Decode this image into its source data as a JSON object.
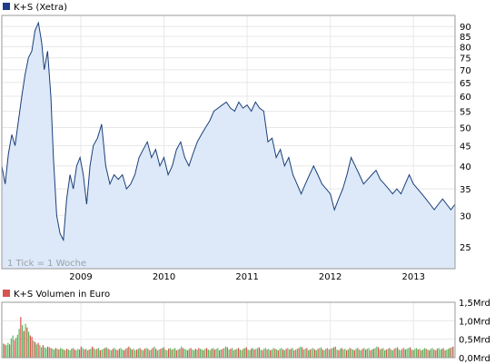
{
  "colors": {
    "price_line": "#1a3f7a",
    "price_fill": "#dde9f8",
    "legend_price": "#1f3c88",
    "legend_volume": "#d9534f",
    "vol_up": "#5cb85c",
    "vol_down": "#d9534f",
    "border": "#999999",
    "grid": "#e8e8e8"
  },
  "chart_data": [
    {
      "type": "line",
      "title": "",
      "legend": "K+S (Xetra)",
      "legend_placement": "top-left",
      "note": "1 Tick = 1 Woche",
      "grid": true,
      "y_scale": "log",
      "ylim": [
        22,
        96
      ],
      "xlim": [
        2008.05,
        2013.5
      ],
      "y_ticks": [
        25,
        30,
        35,
        40,
        45,
        50,
        55,
        60,
        65,
        70,
        75,
        80,
        85,
        90
      ],
      "x_ticks": [
        "2009",
        "2010",
        "2011",
        "2012",
        "2013"
      ],
      "x_tick_values": [
        2009,
        2010,
        2011,
        2012,
        2013
      ],
      "series": [
        {
          "x": [
            2008.05,
            2008.09,
            2008.13,
            2008.17,
            2008.21,
            2008.25,
            2008.29,
            2008.33,
            2008.37,
            2008.41,
            2008.45,
            2008.49,
            2008.53,
            2008.56,
            2008.6,
            2008.64,
            2008.67,
            2008.71,
            2008.75,
            2008.79,
            2008.83,
            2008.87,
            2008.91,
            2008.95,
            2008.99,
            2009.03,
            2009.07,
            2009.11,
            2009.15,
            2009.2,
            2009.25,
            2009.3,
            2009.35,
            2009.4,
            2009.45,
            2009.5,
            2009.55,
            2009.6,
            2009.65,
            2009.7,
            2009.75,
            2009.8,
            2009.85,
            2009.9,
            2009.95,
            2010.0,
            2010.05,
            2010.1,
            2010.15,
            2010.2,
            2010.25,
            2010.3,
            2010.35,
            2010.4,
            2010.45,
            2010.5,
            2010.55,
            2010.6,
            2010.65,
            2010.7,
            2010.75,
            2010.8,
            2010.85,
            2010.9,
            2010.95,
            2011.0,
            2011.05,
            2011.1,
            2011.15,
            2011.2,
            2011.25,
            2011.3,
            2011.35,
            2011.4,
            2011.45,
            2011.5,
            2011.55,
            2011.6,
            2011.65,
            2011.7,
            2011.75,
            2011.8,
            2011.85,
            2011.9,
            2011.95,
            2012.0,
            2012.05,
            2012.1,
            2012.15,
            2012.2,
            2012.25,
            2012.3,
            2012.35,
            2012.4,
            2012.45,
            2012.5,
            2012.55,
            2012.6,
            2012.65,
            2012.7,
            2012.75,
            2012.8,
            2012.85,
            2012.9,
            2012.95,
            2013.0,
            2013.05,
            2013.1,
            2013.15,
            2013.2,
            2013.25,
            2013.3,
            2013.35,
            2013.4,
            2013.45,
            2013.5
          ],
          "values": [
            40,
            36,
            43,
            48,
            45,
            52,
            60,
            68,
            75,
            78,
            88,
            92,
            82,
            70,
            78,
            60,
            42,
            30,
            27,
            26,
            33,
            38,
            35,
            40,
            42,
            38,
            32,
            40,
            45,
            47,
            51,
            40,
            36,
            38,
            37,
            38,
            35,
            36,
            38,
            42,
            44,
            46,
            42,
            44,
            40,
            42,
            38,
            40,
            44,
            46,
            42,
            40,
            43,
            46,
            48,
            50,
            52,
            55,
            56,
            57,
            58,
            56,
            55,
            58,
            56,
            57,
            55,
            58,
            56,
            55,
            46,
            47,
            42,
            44,
            40,
            42,
            38,
            36,
            34,
            36,
            38,
            40,
            38,
            36,
            35,
            34,
            31,
            33,
            35,
            38,
            42,
            40,
            38,
            36,
            37,
            38,
            39,
            37,
            36,
            35,
            34,
            35,
            34,
            36,
            38,
            36,
            35,
            34,
            33,
            32,
            31,
            32,
            33,
            32,
            31,
            32
          ]
        }
      ]
    },
    {
      "type": "bar",
      "title": "",
      "legend": "K+S Volumen in Euro",
      "legend_placement": "top-left",
      "grid": true,
      "ylim": [
        0,
        1.5
      ],
      "y_ticks": [
        "0,0Mrd",
        "0,5Mrd",
        "1,0Mrd",
        "1,5Mrd"
      ],
      "y_tick_values": [
        0,
        0.5,
        1.0,
        1.5
      ],
      "xlim": [
        2008.05,
        2013.5
      ],
      "values": [
        0.38,
        0.36,
        0.34,
        0.4,
        0.36,
        0.52,
        0.6,
        0.48,
        0.54,
        0.62,
        0.78,
        1.1,
        0.88,
        0.72,
        0.92,
        0.82,
        0.7,
        0.6,
        0.56,
        0.46,
        0.42,
        0.36,
        0.4,
        0.34,
        0.28,
        0.34,
        0.28,
        0.26,
        0.3,
        0.28,
        0.26,
        0.24,
        0.22,
        0.26,
        0.24,
        0.22,
        0.26,
        0.24,
        0.22,
        0.2,
        0.24,
        0.22,
        0.2,
        0.24,
        0.26,
        0.22,
        0.2,
        0.24,
        0.22,
        0.3,
        0.26,
        0.22,
        0.24,
        0.2,
        0.22,
        0.24,
        0.3,
        0.26,
        0.22,
        0.24,
        0.26,
        0.2,
        0.22,
        0.24,
        0.26,
        0.28,
        0.24,
        0.22,
        0.2,
        0.24,
        0.26,
        0.22,
        0.2,
        0.24,
        0.26,
        0.22,
        0.2,
        0.24,
        0.26,
        0.3,
        0.26,
        0.22,
        0.24,
        0.2,
        0.22,
        0.24,
        0.26,
        0.22,
        0.2,
        0.24,
        0.26,
        0.24,
        0.2,
        0.22,
        0.26,
        0.3,
        0.24,
        0.2,
        0.22,
        0.24,
        0.26,
        0.28,
        0.22,
        0.2,
        0.24,
        0.26,
        0.22,
        0.24,
        0.26,
        0.2,
        0.22,
        0.24,
        0.3,
        0.26,
        0.24,
        0.22,
        0.2,
        0.24,
        0.26,
        0.22,
        0.2,
        0.24,
        0.22,
        0.26,
        0.24,
        0.22,
        0.2,
        0.24,
        0.26,
        0.22,
        0.2,
        0.24,
        0.26,
        0.22,
        0.24,
        0.26,
        0.2,
        0.22,
        0.24,
        0.26,
        0.3,
        0.28,
        0.22,
        0.24,
        0.26,
        0.2,
        0.22,
        0.24,
        0.26,
        0.22,
        0.2,
        0.24,
        0.26,
        0.28,
        0.22,
        0.2,
        0.24,
        0.26,
        0.22,
        0.24,
        0.26,
        0.28,
        0.22,
        0.2,
        0.24,
        0.26,
        0.22,
        0.24,
        0.2,
        0.22,
        0.26,
        0.24,
        0.22,
        0.2,
        0.24,
        0.26,
        0.22,
        0.2,
        0.24,
        0.26,
        0.22,
        0.24,
        0.26,
        0.2,
        0.22,
        0.24,
        0.26,
        0.3,
        0.28,
        0.22,
        0.24,
        0.26,
        0.2,
        0.22,
        0.24,
        0.26,
        0.22,
        0.2,
        0.24,
        0.26,
        0.28,
        0.22,
        0.2,
        0.24,
        0.26,
        0.22,
        0.24,
        0.26,
        0.28,
        0.3,
        0.22,
        0.2,
        0.24,
        0.26,
        0.22,
        0.24,
        0.2,
        0.22,
        0.26,
        0.24,
        0.22,
        0.2,
        0.24,
        0.26,
        0.22,
        0.2,
        0.24,
        0.26,
        0.22,
        0.24,
        0.26,
        0.2,
        0.22,
        0.24,
        0.26,
        0.3,
        0.28,
        0.22,
        0.24,
        0.26,
        0.2,
        0.22,
        0.24,
        0.26,
        0.22,
        0.2,
        0.24,
        0.26,
        0.28,
        0.22,
        0.2,
        0.24,
        0.26,
        0.22,
        0.24,
        0.26,
        0.28,
        0.22,
        0.2,
        0.24,
        0.26,
        0.22,
        0.24,
        0.2,
        0.22,
        0.26,
        0.24,
        0.22,
        0.2,
        0.24,
        0.26,
        0.22,
        0.2,
        0.24,
        0.26,
        0.22,
        0.24,
        0.26,
        0.2,
        0.22,
        0.24,
        0.26,
        0.28,
        0.3
      ],
      "up": [
        1,
        0,
        1,
        1,
        0,
        1,
        1,
        0,
        1,
        1,
        1,
        0,
        1,
        0,
        1,
        0,
        1,
        0,
        0,
        1,
        0,
        1,
        0,
        1,
        1,
        0,
        1,
        1,
        0,
        1,
        0,
        1,
        1,
        0,
        1,
        0,
        1,
        1,
        0,
        1,
        0,
        1,
        1,
        0,
        1,
        0,
        1,
        1,
        0,
        0,
        1,
        0,
        1,
        1,
        0,
        1,
        0,
        1,
        1,
        0,
        1,
        0,
        1,
        1,
        0,
        1,
        0,
        1,
        1,
        0,
        1,
        0,
        1,
        0,
        1,
        1,
        0,
        1,
        0,
        0,
        1,
        0,
        1,
        1,
        0,
        1,
        0,
        1,
        1,
        0,
        1,
        0,
        1,
        1,
        0,
        1,
        0,
        1,
        1,
        0,
        1,
        0,
        1,
        1,
        0,
        1,
        0,
        1,
        1,
        0,
        1,
        0,
        1,
        0,
        1,
        1,
        0,
        1,
        0,
        1,
        1,
        0,
        1,
        0,
        1,
        1,
        0,
        1,
        0,
        1,
        1,
        0,
        1,
        0,
        1,
        1,
        0,
        1,
        0,
        1,
        1,
        0,
        1,
        0,
        1,
        1,
        0,
        1,
        0,
        1,
        1,
        0,
        1,
        0,
        1,
        1,
        0,
        1,
        0,
        1,
        1,
        0,
        1,
        0,
        1,
        1,
        0,
        1,
        0,
        1,
        1,
        0,
        1,
        0,
        1,
        1,
        0,
        1,
        0,
        1,
        1,
        0,
        1,
        0,
        1,
        1,
        0,
        1,
        0,
        1,
        1,
        0,
        1,
        0,
        1,
        1,
        0,
        1,
        0,
        1,
        1,
        0,
        1,
        0,
        1,
        1,
        0,
        1,
        0,
        1,
        1,
        0,
        1,
        0,
        1,
        1,
        0,
        1,
        0,
        1,
        1,
        0,
        1,
        0,
        1,
        1,
        0,
        1,
        0,
        1,
        1,
        0,
        1,
        0,
        1,
        1,
        0,
        1,
        0,
        1,
        1,
        0,
        1,
        0,
        1,
        1,
        0,
        1,
        0,
        1,
        1,
        0,
        1,
        0,
        1,
        1,
        0,
        1,
        0,
        1,
        1,
        0,
        1,
        0,
        1,
        1,
        0,
        1,
        0,
        1,
        1,
        0,
        1,
        0,
        1,
        1,
        0,
        1,
        0,
        1,
        1,
        0,
        1,
        0,
        1,
        1,
        0,
        1,
        0,
        1,
        1,
        0,
        1,
        0,
        1,
        1,
        0,
        1
      ]
    }
  ]
}
